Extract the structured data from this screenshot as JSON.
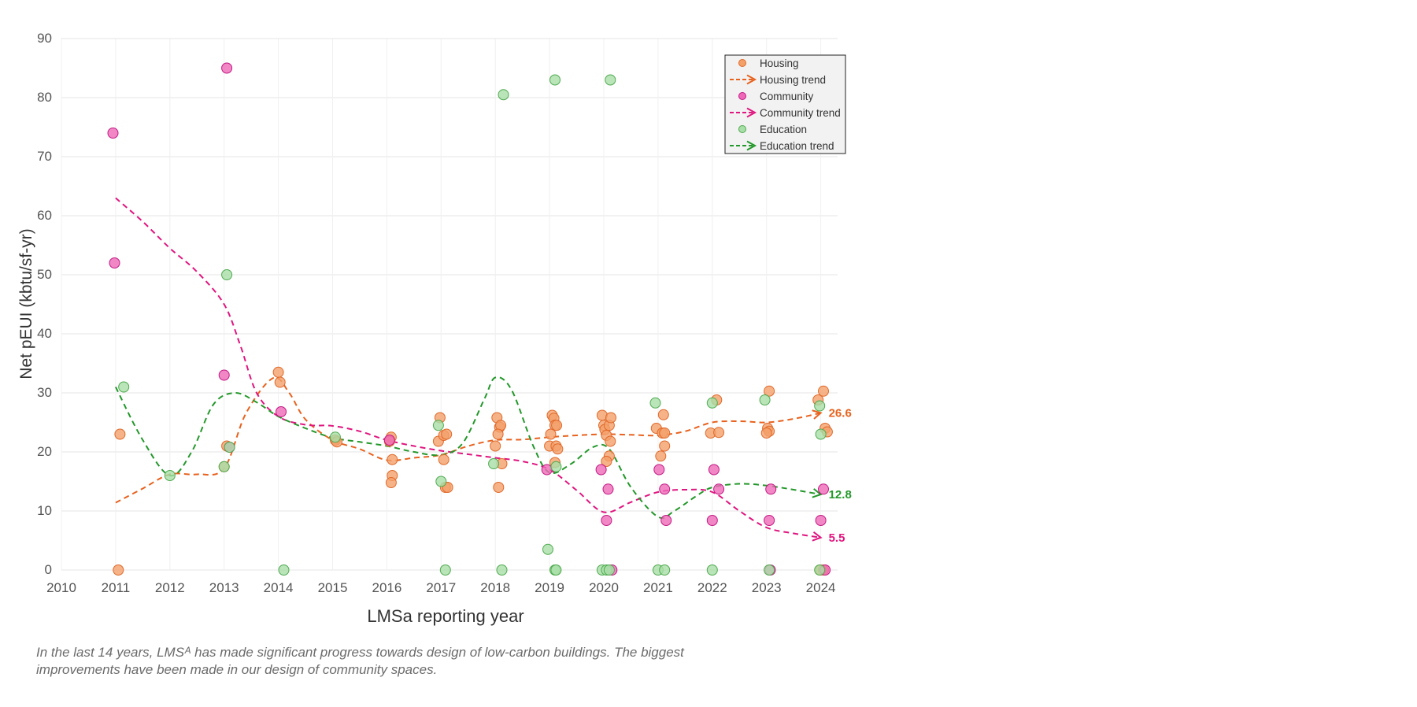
{
  "caption": "In the last 14 years, LMSᴬ has made significant progress towards design of low-carbon buildings. The biggest improvements have been made in our design of community spaces.",
  "chart_data": {
    "type": "scatter",
    "xlabel": "LMSa reporting year",
    "ylabel": "Net pEUI (kbtu/sf-yr)",
    "xlim": [
      2010,
      2024.4
    ],
    "ylim": [
      0,
      90
    ],
    "xticks": [
      2010,
      2011,
      2012,
      2013,
      2014,
      2015,
      2016,
      2017,
      2018,
      2019,
      2020,
      2021,
      2022,
      2023,
      2024
    ],
    "yticks": [
      0,
      10,
      20,
      30,
      40,
      50,
      60,
      70,
      80,
      90
    ],
    "grid": true,
    "legend_position": "top-right",
    "legend": [
      {
        "label": "Housing",
        "kind": "marker",
        "color": "#f4a06a",
        "edge": "#e0692a"
      },
      {
        "label": "Housing trend",
        "kind": "arrow",
        "color": "#e8621e"
      },
      {
        "label": "Community",
        "kind": "marker",
        "color": "#ef69b8",
        "edge": "#c21a83"
      },
      {
        "label": "Community trend",
        "kind": "arrow",
        "color": "#e0157f"
      },
      {
        "label": "Education",
        "kind": "marker",
        "color": "#a8dfa8",
        "edge": "#4faa4f"
      },
      {
        "label": "Education trend",
        "kind": "arrow",
        "color": "#23982a"
      }
    ],
    "series": [
      {
        "name": "Housing",
        "marker_fill": "#f4a06a",
        "marker_edge": "#e0692a",
        "points": [
          [
            2011.05,
            0
          ],
          [
            2011.08,
            23
          ],
          [
            2013.0,
            17.5
          ],
          [
            2013.05,
            21
          ],
          [
            2014.0,
            33.5
          ],
          [
            2014.03,
            31.8
          ],
          [
            2015.05,
            22
          ],
          [
            2015.08,
            21.7
          ],
          [
            2016.08,
            22.5
          ],
          [
            2016.1,
            18.7
          ],
          [
            2016.1,
            16
          ],
          [
            2016.08,
            14.8
          ],
          [
            2016.05,
            21.8
          ],
          [
            2016.98,
            25.8
          ],
          [
            2016.95,
            21.8
          ],
          [
            2017.05,
            22.8
          ],
          [
            2017.1,
            23
          ],
          [
            2017.05,
            18.7
          ],
          [
            2017.08,
            14
          ],
          [
            2017.12,
            14
          ],
          [
            2018.03,
            25.8
          ],
          [
            2018.08,
            24.2
          ],
          [
            2018.1,
            24.5
          ],
          [
            2018.05,
            23
          ],
          [
            2018.0,
            21
          ],
          [
            2018.12,
            18
          ],
          [
            2018.06,
            14
          ],
          [
            2019.05,
            26.2
          ],
          [
            2019.08,
            25.7
          ],
          [
            2019.1,
            24.5
          ],
          [
            2019.13,
            24.5
          ],
          [
            2019.02,
            23
          ],
          [
            2019.0,
            21
          ],
          [
            2019.12,
            21
          ],
          [
            2019.15,
            20.5
          ],
          [
            2019.1,
            18.2
          ],
          [
            2019.97,
            26.2
          ],
          [
            2020.0,
            24.5
          ],
          [
            2020.02,
            23.8
          ],
          [
            2020.1,
            24.5
          ],
          [
            2020.13,
            25.8
          ],
          [
            2020.05,
            22.8
          ],
          [
            2020.12,
            21.8
          ],
          [
            2020.1,
            19.3
          ],
          [
            2020.05,
            18.4
          ],
          [
            2020.97,
            24
          ],
          [
            2021.1,
            26.3
          ],
          [
            2021.08,
            23.2
          ],
          [
            2021.12,
            23.2
          ],
          [
            2021.05,
            19.3
          ],
          [
            2021.12,
            21
          ],
          [
            2022.08,
            28.8
          ],
          [
            2021.97,
            23.2
          ],
          [
            2022.12,
            23.3
          ],
          [
            2023.05,
            30.3
          ],
          [
            2023.02,
            24
          ],
          [
            2023.05,
            23.5
          ],
          [
            2023.0,
            23.2
          ],
          [
            2023.95,
            28.8
          ],
          [
            2024.05,
            30.3
          ],
          [
            2024.08,
            24
          ],
          [
            2024.12,
            23.4
          ],
          [
            2024.0,
            0
          ],
          [
            2024.05,
            0
          ]
        ]
      },
      {
        "name": "Community",
        "marker_fill": "#ef69b8",
        "marker_edge": "#c21a83",
        "points": [
          [
            2010.95,
            74
          ],
          [
            2010.98,
            52
          ],
          [
            2013.05,
            85
          ],
          [
            2013.0,
            33
          ],
          [
            2013.1,
            20.8
          ],
          [
            2014.05,
            26.8
          ],
          [
            2016.05,
            22
          ],
          [
            2018.95,
            17
          ],
          [
            2019.95,
            17
          ],
          [
            2020.08,
            13.7
          ],
          [
            2020.05,
            8.4
          ],
          [
            2020.15,
            0
          ],
          [
            2021.02,
            17
          ],
          [
            2021.12,
            13.7
          ],
          [
            2021.15,
            8.4
          ],
          [
            2022.03,
            17
          ],
          [
            2022.12,
            13.7
          ],
          [
            2022.0,
            8.4
          ],
          [
            2023.08,
            13.7
          ],
          [
            2023.05,
            8.4
          ],
          [
            2023.07,
            0
          ],
          [
            2024.05,
            13.7
          ],
          [
            2024.0,
            8.4
          ],
          [
            2024.08,
            0
          ]
        ]
      },
      {
        "name": "Education",
        "marker_fill": "#a8dfa8",
        "marker_edge": "#4faa4f",
        "points": [
          [
            2011.15,
            31
          ],
          [
            2012.0,
            16
          ],
          [
            2013.05,
            50
          ],
          [
            2013.0,
            17.5
          ],
          [
            2013.1,
            20.8
          ],
          [
            2014.1,
            0
          ],
          [
            2015.05,
            22.5
          ],
          [
            2016.95,
            24.5
          ],
          [
            2017.0,
            15
          ],
          [
            2017.08,
            0
          ],
          [
            2018.15,
            80.5
          ],
          [
            2017.97,
            18
          ],
          [
            2018.12,
            0
          ],
          [
            2019.1,
            83
          ],
          [
            2019.12,
            17.5
          ],
          [
            2018.97,
            3.5
          ],
          [
            2019.1,
            0
          ],
          [
            2019.12,
            0
          ],
          [
            2020.12,
            83
          ],
          [
            2019.97,
            0
          ],
          [
            2020.05,
            0
          ],
          [
            2020.1,
            0
          ],
          [
            2020.95,
            28.3
          ],
          [
            2021.0,
            0
          ],
          [
            2021.12,
            0
          ],
          [
            2022.0,
            28.3
          ],
          [
            2022.0,
            0
          ],
          [
            2022.97,
            28.8
          ],
          [
            2023.05,
            0
          ],
          [
            2023.98,
            27.8
          ],
          [
            2024.0,
            23
          ],
          [
            2023.98,
            0
          ]
        ]
      }
    ],
    "trends": [
      {
        "name": "Housing trend",
        "color": "#e8621e",
        "end_label": "26.6",
        "points": [
          [
            2011,
            11.4
          ],
          [
            2011.5,
            13.8
          ],
          [
            2012,
            16.2
          ],
          [
            2012.5,
            16.2
          ],
          [
            2013,
            17.2
          ],
          [
            2013.4,
            26.5
          ],
          [
            2013.9,
            32.5
          ],
          [
            2014.2,
            30
          ],
          [
            2014.5,
            25.5
          ],
          [
            2015,
            22
          ],
          [
            2015.5,
            20.5
          ],
          [
            2016,
            18.6
          ],
          [
            2016.5,
            19
          ],
          [
            2017,
            19.5
          ],
          [
            2017.5,
            21
          ],
          [
            2018,
            22
          ],
          [
            2018.5,
            22.1
          ],
          [
            2019,
            22.5
          ],
          [
            2019.5,
            22.8
          ],
          [
            2020,
            23
          ],
          [
            2020.5,
            22.9
          ],
          [
            2021,
            22.8
          ],
          [
            2021.5,
            23.5
          ],
          [
            2022,
            25
          ],
          [
            2022.5,
            25.2
          ],
          [
            2023,
            25
          ],
          [
            2023.5,
            25.6
          ],
          [
            2024,
            26.6
          ]
        ]
      },
      {
        "name": "Community trend",
        "color": "#e0157f",
        "end_label": "5.5",
        "points": [
          [
            2011,
            63
          ],
          [
            2011.5,
            59
          ],
          [
            2012,
            54.5
          ],
          [
            2012.5,
            50.5
          ],
          [
            2013,
            45
          ],
          [
            2013.3,
            38
          ],
          [
            2013.6,
            30
          ],
          [
            2014,
            26
          ],
          [
            2014.5,
            24.6
          ],
          [
            2015,
            24.4
          ],
          [
            2015.5,
            23.5
          ],
          [
            2016,
            22
          ],
          [
            2016.5,
            21
          ],
          [
            2017,
            20.2
          ],
          [
            2017.5,
            19.6
          ],
          [
            2018,
            19
          ],
          [
            2018.5,
            18.4
          ],
          [
            2019,
            17
          ],
          [
            2019.5,
            13.5
          ],
          [
            2020,
            9.8
          ],
          [
            2020.5,
            11.5
          ],
          [
            2021,
            13.2
          ],
          [
            2021.5,
            13.6
          ],
          [
            2022,
            13.2
          ],
          [
            2022.5,
            10
          ],
          [
            2023,
            7.2
          ],
          [
            2023.5,
            6.2
          ],
          [
            2024,
            5.5
          ]
        ]
      },
      {
        "name": "Education trend",
        "color": "#23982a",
        "end_label": "12.8",
        "points": [
          [
            2011,
            31
          ],
          [
            2011.5,
            22
          ],
          [
            2012,
            16
          ],
          [
            2012.4,
            20
          ],
          [
            2012.8,
            28
          ],
          [
            2013.2,
            30
          ],
          [
            2013.6,
            28.4
          ],
          [
            2014,
            26
          ],
          [
            2014.5,
            24
          ],
          [
            2015,
            22.4
          ],
          [
            2015.5,
            21.7
          ],
          [
            2016,
            21
          ],
          [
            2016.5,
            20
          ],
          [
            2017,
            19.5
          ],
          [
            2017.4,
            21.5
          ],
          [
            2017.8,
            29
          ],
          [
            2018,
            32.6
          ],
          [
            2018.3,
            30.5
          ],
          [
            2018.7,
            21
          ],
          [
            2019,
            16.5
          ],
          [
            2019.4,
            18
          ],
          [
            2019.8,
            20.8
          ],
          [
            2020.1,
            20.5
          ],
          [
            2020.5,
            14
          ],
          [
            2021,
            9
          ],
          [
            2021.3,
            10
          ],
          [
            2021.7,
            12.5
          ],
          [
            2022,
            14
          ],
          [
            2022.5,
            14.6
          ],
          [
            2023,
            14.3
          ],
          [
            2023.5,
            13.6
          ],
          [
            2024,
            12.8
          ]
        ]
      }
    ]
  }
}
